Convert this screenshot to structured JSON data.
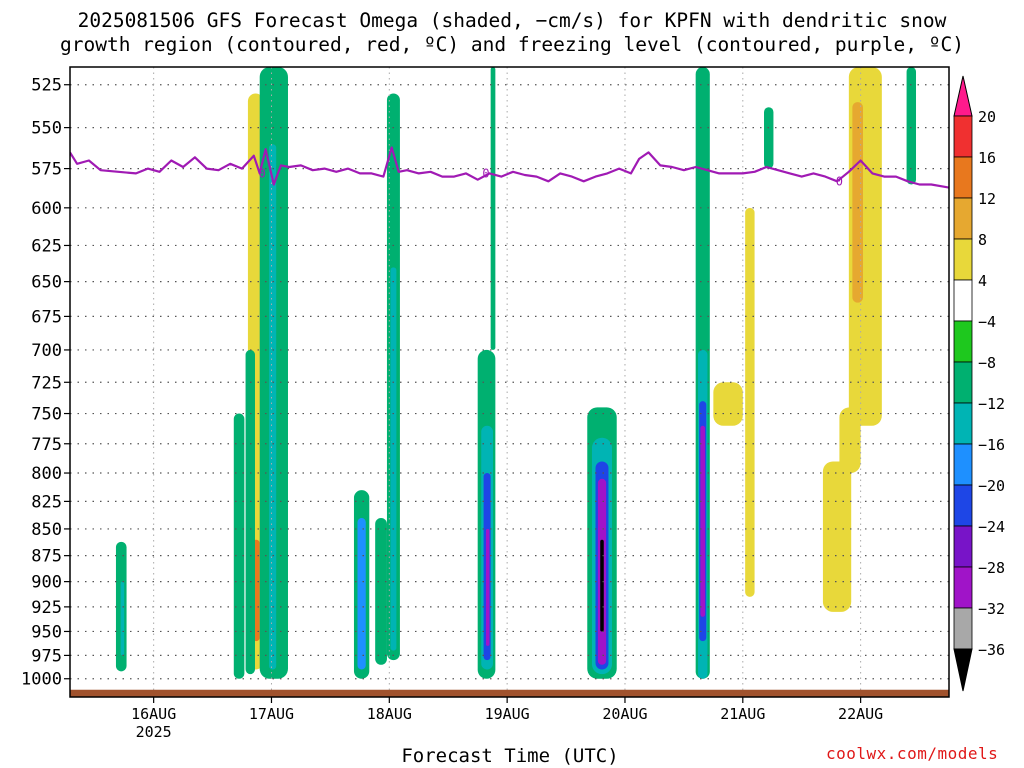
{
  "title_line1": "2025081506 GFS Forecast Omega (shaded, −cm/s) for KPFN with dendritic snow",
  "title_line2": "growth region (contoured, red, ºC) and freezing level (contoured, purple, ºC)",
  "xlabel": "Forecast Time (UTC)",
  "credit": "coolwx.com/models",
  "colors": {
    "freezing_line": "#a01ab4",
    "ground": "#a0522d",
    "grid": "#555555"
  },
  "chart_data": {
    "type": "heatmap",
    "title": "2025081506 GFS Forecast Omega (shaded, −cm/s) for KPFN with dendritic snow growth region (contoured, red, ºC) and freezing level (contoured, purple, ºC)",
    "xlabel": "Forecast Time (UTC)",
    "ylabel": "",
    "y_axis": "pressure (hPa), inverted, log scale",
    "ylim": [
      1020,
      515
    ],
    "xlim_days": [
      15.29,
      22.75
    ],
    "x_ticks": [
      {
        "day": 16,
        "label": "16AUG",
        "sublabel": "2025"
      },
      {
        "day": 17,
        "label": "17AUG"
      },
      {
        "day": 18,
        "label": "18AUG"
      },
      {
        "day": 19,
        "label": "19AUG"
      },
      {
        "day": 20,
        "label": "20AUG"
      },
      {
        "day": 21,
        "label": "21AUG"
      },
      {
        "day": 22,
        "label": "22AUG"
      }
    ],
    "y_ticks": [
      525,
      550,
      575,
      600,
      625,
      650,
      675,
      700,
      725,
      750,
      775,
      800,
      825,
      850,
      875,
      900,
      925,
      950,
      975,
      1000
    ],
    "grid": true,
    "colorbar": {
      "labels": [
        "20",
        "16",
        "12",
        "8",
        "4",
        "−4",
        "−8",
        "−12",
        "−16",
        "−20",
        "−24",
        "−28",
        "−32",
        "−36"
      ],
      "colors": [
        "#ff1a8c",
        "#f03030",
        "#e8781e",
        "#e6a830",
        "#e8d83a",
        "#ffffff",
        "#1ec81e",
        "#00b070",
        "#00b4b4",
        "#1e90ff",
        "#1e46e6",
        "#7814c8",
        "#a014c8",
        "#a8a8a8",
        "#000000"
      ]
    },
    "freezing_level": {
      "label": "0",
      "days": [
        15.29,
        15.35,
        15.45,
        15.55,
        15.7,
        15.85,
        15.95,
        16.05,
        16.15,
        16.25,
        16.35,
        16.45,
        16.55,
        16.65,
        16.75,
        16.85,
        16.9,
        16.95,
        17.02,
        17.08,
        17.15,
        17.25,
        17.35,
        17.45,
        17.55,
        17.65,
        17.75,
        17.85,
        17.95,
        18.02,
        18.08,
        18.15,
        18.25,
        18.35,
        18.45,
        18.55,
        18.65,
        18.75,
        18.85,
        18.95,
        19.05,
        19.15,
        19.25,
        19.35,
        19.45,
        19.55,
        19.65,
        19.75,
        19.85,
        19.95,
        20.05,
        20.12,
        20.2,
        20.3,
        20.4,
        20.5,
        20.6,
        20.7,
        20.8,
        20.9,
        21.0,
        21.1,
        21.2,
        21.3,
        21.4,
        21.5,
        21.6,
        21.7,
        21.8,
        21.9,
        22.0,
        22.1,
        22.2,
        22.3,
        22.4,
        22.5,
        22.6,
        22.75
      ],
      "values": [
        565,
        572,
        570,
        576,
        577,
        578,
        575,
        577,
        570,
        574,
        568,
        575,
        576,
        572,
        575,
        567,
        578,
        563,
        585,
        573,
        574,
        573,
        576,
        575,
        577,
        575,
        578,
        578,
        580,
        562,
        577,
        576,
        578,
        577,
        580,
        580,
        578,
        582,
        578,
        580,
        577,
        579,
        580,
        583,
        578,
        580,
        583,
        580,
        578,
        575,
        578,
        569,
        565,
        573,
        574,
        576,
        574,
        576,
        578,
        578,
        578,
        577,
        574,
        576,
        578,
        580,
        578,
        580,
        583,
        577,
        570,
        578,
        580,
        580,
        583,
        585,
        585,
        587
      ]
    },
    "omega_regions": [
      {
        "x0": 15.68,
        "x1": 15.77,
        "top": 862,
        "bottom": 992,
        "value": -8
      },
      {
        "x0": 15.72,
        "x1": 15.75,
        "top": 900,
        "bottom": 975,
        "value": -12
      },
      {
        "x0": 16.68,
        "x1": 16.77,
        "top": 750,
        "bottom": 1000,
        "value": -8
      },
      {
        "x0": 16.78,
        "x1": 16.86,
        "top": 700,
        "bottom": 995,
        "value": -8
      },
      {
        "x0": 16.9,
        "x1": 17.14,
        "top": 515,
        "bottom": 1000,
        "value": -8
      },
      {
        "x0": 16.98,
        "x1": 17.04,
        "top": 560,
        "bottom": 990,
        "value": -12
      },
      {
        "x0": 17.7,
        "x1": 17.83,
        "top": 815,
        "bottom": 1000,
        "value": -8
      },
      {
        "x0": 17.73,
        "x1": 17.8,
        "top": 840,
        "bottom": 990,
        "value": -16
      },
      {
        "x0": 17.88,
        "x1": 17.98,
        "top": 840,
        "bottom": 985,
        "value": -8
      },
      {
        "x0": 17.98,
        "x1": 18.09,
        "top": 530,
        "bottom": 980,
        "value": -8
      },
      {
        "x0": 18.01,
        "x1": 18.06,
        "top": 640,
        "bottom": 970,
        "value": -12
      },
      {
        "x0": 18.75,
        "x1": 18.9,
        "top": 700,
        "bottom": 1000,
        "value": -8
      },
      {
        "x0": 18.78,
        "x1": 18.88,
        "top": 760,
        "bottom": 990,
        "value": -12
      },
      {
        "x0": 18.8,
        "x1": 18.86,
        "top": 800,
        "bottom": 980,
        "value": -20
      },
      {
        "x0": 18.82,
        "x1": 18.85,
        "top": 850,
        "bottom": 965,
        "value": -28
      },
      {
        "x0": 18.86,
        "x1": 18.9,
        "top": 515,
        "bottom": 700,
        "value": -8
      },
      {
        "x0": 19.68,
        "x1": 19.93,
        "top": 745,
        "bottom": 1000,
        "value": -8
      },
      {
        "x0": 19.72,
        "x1": 19.89,
        "top": 770,
        "bottom": 995,
        "value": -12
      },
      {
        "x0": 19.75,
        "x1": 19.86,
        "top": 790,
        "bottom": 990,
        "value": -20
      },
      {
        "x0": 19.77,
        "x1": 19.84,
        "top": 805,
        "bottom": 985,
        "value": -28
      },
      {
        "x0": 19.79,
        "x1": 19.82,
        "top": 860,
        "bottom": 950,
        "value": -36
      },
      {
        "x0": 20.6,
        "x1": 20.72,
        "top": 515,
        "bottom": 1000,
        "value": -8
      },
      {
        "x0": 20.62,
        "x1": 20.7,
        "top": 700,
        "bottom": 1000,
        "value": -12
      },
      {
        "x0": 20.63,
        "x1": 20.69,
        "top": 740,
        "bottom": 960,
        "value": -20
      },
      {
        "x0": 20.64,
        "x1": 20.68,
        "top": 760,
        "bottom": 935,
        "value": -28
      },
      {
        "x0": 21.18,
        "x1": 21.26,
        "top": 538,
        "bottom": 575,
        "value": -8
      },
      {
        "x0": 22.39,
        "x1": 22.47,
        "top": 515,
        "bottom": 585,
        "value": -8
      }
    ],
    "dgz_positive_regions": [
      {
        "x0": 20.75,
        "x1": 21.0,
        "top": 725,
        "bottom": 760,
        "value": 4
      },
      {
        "x0": 21.02,
        "x1": 21.1,
        "top": 600,
        "bottom": 915,
        "value": 6
      },
      {
        "x0": 21.68,
        "x1": 21.92,
        "top": 790,
        "bottom": 930,
        "value": 5
      },
      {
        "x0": 21.82,
        "x1": 22.0,
        "top": 745,
        "bottom": 800,
        "value": 4
      },
      {
        "x0": 21.9,
        "x1": 22.18,
        "top": 515,
        "bottom": 760,
        "value": 5
      },
      {
        "x0": 21.93,
        "x1": 22.02,
        "top": 535,
        "bottom": 665,
        "value": 9
      },
      {
        "x0": 16.8,
        "x1": 16.93,
        "top": 530,
        "bottom": 990,
        "value": 5
      },
      {
        "x0": 16.84,
        "x1": 16.9,
        "top": 860,
        "bottom": 960,
        "value": 12
      }
    ]
  }
}
